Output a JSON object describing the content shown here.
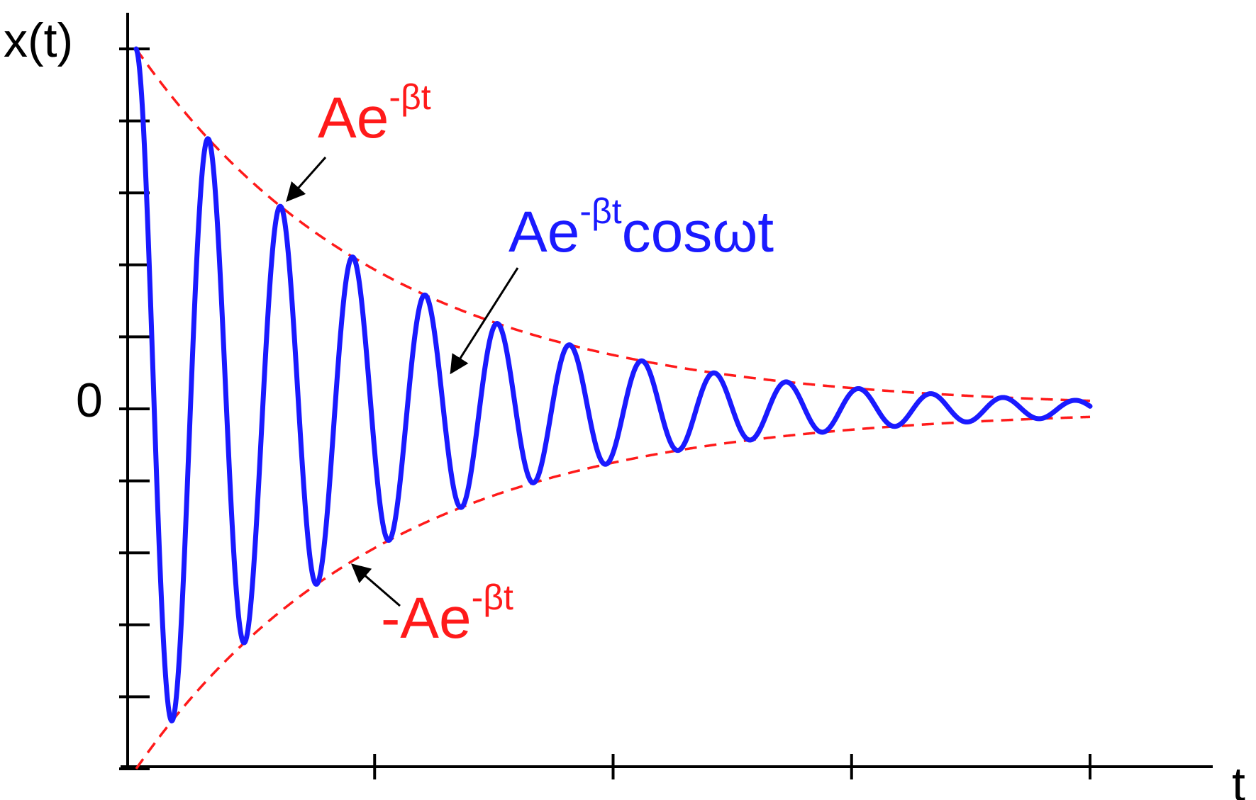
{
  "chart_data": {
    "type": "line",
    "xlabel": "t",
    "ylabel": "x(t)",
    "y_tick_labels": [
      "0"
    ],
    "x_major_ticks": 4,
    "y_ticks_each_side": 5,
    "xlim": [
      0,
      4
    ],
    "ylim": [
      -1,
      1
    ],
    "amplitude": 1,
    "beta": 0.95,
    "omega": 20.73,
    "grid": false,
    "series": [
      {
        "function": "A*exp(-beta*t)*cos(omega*t)",
        "style": "solid",
        "color": "#1a1aff"
      },
      {
        "function": "A*exp(-beta*t)",
        "style": "dashed",
        "color": "#ff1a1a"
      },
      {
        "function": "-A*exp(-beta*t)",
        "style": "dashed",
        "color": "#ff1a1a"
      }
    ],
    "annotations": [
      {
        "id": "upper",
        "base": "Ae",
        "sup": "-βt",
        "suffix": "",
        "color": "#ff1a1a"
      },
      {
        "id": "curve",
        "base": "Ae",
        "sup": "-βt",
        "suffix": "cosωt",
        "color": "#1a1aff"
      },
      {
        "id": "lower",
        "base": "-Ae",
        "sup": "-βt",
        "suffix": "",
        "color": "#ff1a1a"
      }
    ]
  }
}
